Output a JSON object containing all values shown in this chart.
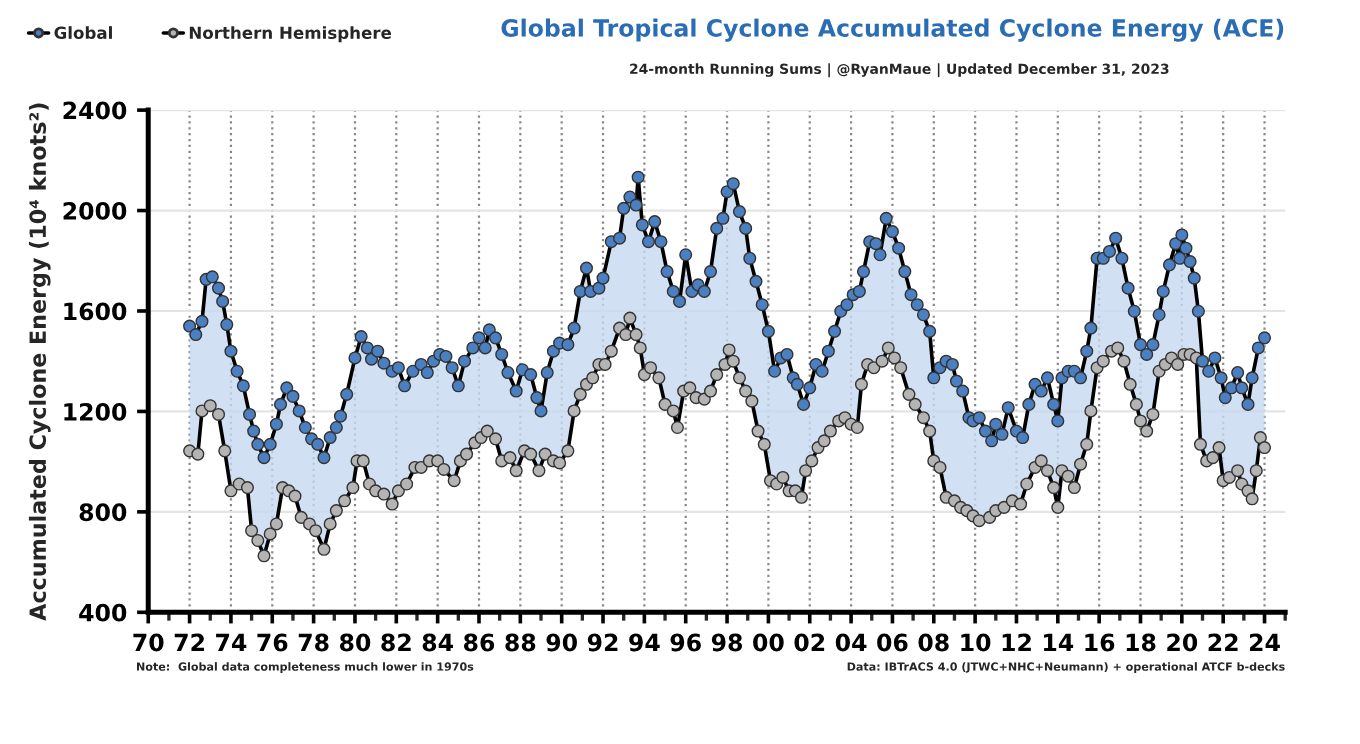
{
  "chart_data": {
    "type": "line",
    "title": "Global Tropical Cyclone Accumulated Cyclone Energy (ACE)",
    "subtitle": "24-month Running Sums | @RyanMaue | Updated December 31, 2023",
    "ylabel": "Accumulated Cyclone Energy (10⁴ knots²)",
    "annotations": [
      "Note:  Global data completeness much lower in 1970s",
      "Data: IBTrACS 4.0 (JTWC+NHC+Neumann) + operational ATCF b-decks"
    ],
    "xlim": [
      1970,
      2025
    ],
    "ylim": [
      400,
      2400
    ],
    "xticks": [
      {
        "value": 1970,
        "label": "70"
      },
      {
        "value": 1971,
        "label": null
      },
      {
        "value": 1972,
        "label": "72"
      },
      {
        "value": 1973,
        "label": null
      },
      {
        "value": 1974,
        "label": "74"
      },
      {
        "value": 1975,
        "label": null
      },
      {
        "value": 1976,
        "label": "76"
      },
      {
        "value": 1977,
        "label": null
      },
      {
        "value": 1978,
        "label": "78"
      },
      {
        "value": 1979,
        "label": null
      },
      {
        "value": 1980,
        "label": "80"
      },
      {
        "value": 1981,
        "label": null
      },
      {
        "value": 1982,
        "label": "82"
      },
      {
        "value": 1983,
        "label": null
      },
      {
        "value": 1984,
        "label": "84"
      },
      {
        "value": 1985,
        "label": null
      },
      {
        "value": 1986,
        "label": "86"
      },
      {
        "value": 1987,
        "label": null
      },
      {
        "value": 1988,
        "label": "88"
      },
      {
        "value": 1989,
        "label": null
      },
      {
        "value": 1990,
        "label": "90"
      },
      {
        "value": 1991,
        "label": null
      },
      {
        "value": 1992,
        "label": "92"
      },
      {
        "value": 1993,
        "label": null
      },
      {
        "value": 1994,
        "label": "94"
      },
      {
        "value": 1995,
        "label": null
      },
      {
        "value": 1996,
        "label": "96"
      },
      {
        "value": 1997,
        "label": null
      },
      {
        "value": 1998,
        "label": "98"
      },
      {
        "value": 1999,
        "label": null
      },
      {
        "value": 2000,
        "label": "00"
      },
      {
        "value": 2001,
        "label": null
      },
      {
        "value": 2002,
        "label": "02"
      },
      {
        "value": 2003,
        "label": null
      },
      {
        "value": 2004,
        "label": "04"
      },
      {
        "value": 2005,
        "label": null
      },
      {
        "value": 2006,
        "label": "06"
      },
      {
        "value": 2007,
        "label": null
      },
      {
        "value": 2008,
        "label": "08"
      },
      {
        "value": 2009,
        "label": null
      },
      {
        "value": 2010,
        "label": "10"
      },
      {
        "value": 2011,
        "label": null
      },
      {
        "value": 2012,
        "label": "12"
      },
      {
        "value": 2013,
        "label": null
      },
      {
        "value": 2014,
        "label": "14"
      },
      {
        "value": 2015,
        "label": null
      },
      {
        "value": 2016,
        "label": "16"
      },
      {
        "value": 2017,
        "label": null
      },
      {
        "value": 2018,
        "label": "18"
      },
      {
        "value": 2019,
        "label": null
      },
      {
        "value": 2020,
        "label": "20"
      },
      {
        "value": 2021,
        "label": null
      },
      {
        "value": 2022,
        "label": "22"
      },
      {
        "value": 2023,
        "label": null
      },
      {
        "value": 2024,
        "label": "24"
      },
      {
        "value": 2025,
        "label": null
      }
    ],
    "yticks": [
      400,
      800,
      1200,
      1600,
      2000,
      2400
    ],
    "grid": true,
    "legend": "top left",
    "marker": "circle",
    "line_style": "solid",
    "series": [
      {
        "name": "Global",
        "color": "#4a7fc1",
        "type": "area",
        "x": [
          1972.0,
          1972.3,
          1972.6,
          1972.8,
          1973.1,
          1973.4,
          1973.6,
          1973.8,
          1974.0,
          1974.3,
          1974.6,
          1974.9,
          1975.1,
          1975.3,
          1975.6,
          1975.9,
          1976.2,
          1976.4,
          1976.7,
          1977.0,
          1977.3,
          1977.6,
          1977.9,
          1978.2,
          1978.5,
          1978.8,
          1979.1,
          1979.3,
          1979.6,
          1980.0,
          1980.3,
          1980.6,
          1980.8,
          1981.1,
          1981.4,
          1981.8,
          1982.1,
          1982.4,
          1982.8,
          1983.2,
          1983.5,
          1983.8,
          1984.1,
          1984.4,
          1984.7,
          1985.0,
          1985.3,
          1985.7,
          1986.0,
          1986.3,
          1986.5,
          1986.8,
          1987.1,
          1987.4,
          1987.8,
          1988.1,
          1988.5,
          1988.8,
          1989.0,
          1989.3,
          1989.6,
          1989.9,
          1990.3,
          1990.6,
          1990.9,
          1991.2,
          1991.4,
          1991.8,
          1992.0,
          1992.4,
          1992.8,
          1993.0,
          1993.3,
          1993.6,
          1993.7,
          1993.9,
          1994.2,
          1994.5,
          1994.8,
          1995.1,
          1995.4,
          1995.7,
          1996.0,
          1996.3,
          1996.6,
          1996.9,
          1997.2,
          1997.5,
          1997.8,
          1998.0,
          1998.3,
          1998.6,
          1998.9,
          1999.1,
          1999.4,
          1999.7,
          2000.0,
          2000.3,
          2000.6,
          2000.9,
          2001.2,
          2001.4,
          2001.7,
          2002.0,
          2002.3,
          2002.6,
          2002.9,
          2003.2,
          2003.5,
          2003.8,
          2004.1,
          2004.4,
          2004.6,
          2004.9,
          2005.2,
          2005.4,
          2005.7,
          2006.0,
          2006.3,
          2006.6,
          2006.9,
          2007.2,
          2007.5,
          2007.8,
          2008.0,
          2008.3,
          2008.6,
          2008.9,
          2009.1,
          2009.4,
          2009.7,
          2009.9,
          2010.2,
          2010.5,
          2010.8,
          2011.0,
          2011.3,
          2011.6,
          2012.0,
          2012.3,
          2012.6,
          2012.9,
          2013.2,
          2013.5,
          2013.8,
          2014.0,
          2014.2,
          2014.5,
          2014.8,
          2015.1,
          2015.4,
          2015.6,
          2015.9,
          2016.2,
          2016.5,
          2016.8,
          2017.1,
          2017.4,
          2017.7,
          2018.0,
          2018.3,
          2018.6,
          2018.9,
          2019.1,
          2019.4,
          2019.7,
          2019.9,
          2020.0,
          2020.2,
          2020.4,
          2020.6,
          2020.8,
          2021.0,
          2021.3,
          2021.6,
          2021.9,
          2022.1,
          2022.4,
          2022.7,
          2022.9,
          2023.2,
          2023.4,
          2023.7,
          2024.0
        ],
        "values": [
          1540,
          1506,
          1559,
          1726,
          1736,
          1691,
          1638,
          1546,
          1440,
          1360,
          1302,
          1188,
          1122,
          1069,
          1016,
          1069,
          1149,
          1228,
          1294,
          1260,
          1202,
          1136,
          1091,
          1069,
          1016,
          1096,
          1136,
          1181,
          1268,
          1413,
          1498,
          1453,
          1408,
          1440,
          1392,
          1360,
          1374,
          1302,
          1360,
          1387,
          1355,
          1400,
          1427,
          1419,
          1374,
          1302,
          1400,
          1453,
          1493,
          1453,
          1525,
          1493,
          1427,
          1355,
          1281,
          1366,
          1347,
          1255,
          1202,
          1355,
          1440,
          1472,
          1466,
          1532,
          1678,
          1771,
          1678,
          1691,
          1731,
          1876,
          1890,
          2009,
          2054,
          2022,
          2133,
          1943,
          1876,
          1956,
          1876,
          1757,
          1678,
          1638,
          1824,
          1678,
          1704,
          1678,
          1757,
          1929,
          1969,
          2075,
          2107,
          1996,
          1929,
          1810,
          1718,
          1625,
          1519,
          1360,
          1413,
          1427,
          1334,
          1308,
          1228,
          1294,
          1387,
          1360,
          1440,
          1519,
          1599,
          1625,
          1665,
          1678,
          1757,
          1876,
          1868,
          1824,
          1969,
          1916,
          1850,
          1757,
          1665,
          1625,
          1585,
          1519,
          1334,
          1374,
          1400,
          1387,
          1321,
          1281,
          1175,
          1162,
          1175,
          1122,
          1083,
          1149,
          1109,
          1215,
          1122,
          1096,
          1228,
          1308,
          1281,
          1334,
          1228,
          1162,
          1334,
          1360,
          1360,
          1334,
          1440,
          1532,
          1810,
          1810,
          1837,
          1890,
          1810,
          1691,
          1599,
          1466,
          1427,
          1466,
          1585,
          1678,
          1784,
          1868,
          1810,
          1903,
          1850,
          1797,
          1731,
          1599,
          1400,
          1360,
          1413,
          1334,
          1255,
          1294,
          1355,
          1294,
          1228,
          1334,
          1453,
          1493
        ]
      },
      {
        "name": "Northern Hemisphere",
        "color": "#b4b4b4",
        "x": [
          1972.0,
          1972.4,
          1972.6,
          1973.0,
          1973.4,
          1973.7,
          1974.0,
          1974.4,
          1974.8,
          1975.0,
          1975.3,
          1975.6,
          1975.9,
          1976.2,
          1976.5,
          1976.8,
          1977.1,
          1977.4,
          1977.8,
          1978.1,
          1978.5,
          1978.8,
          1979.1,
          1979.5,
          1979.9,
          1980.1,
          1980.4,
          1980.7,
          1981.0,
          1981.4,
          1981.8,
          1982.1,
          1982.5,
          1982.9,
          1983.2,
          1983.6,
          1984.0,
          1984.3,
          1984.8,
          1985.1,
          1985.4,
          1985.8,
          1986.1,
          1986.4,
          1986.8,
          1987.1,
          1987.5,
          1987.8,
          1988.2,
          1988.5,
          1988.9,
          1989.2,
          1989.6,
          1989.9,
          1990.3,
          1990.6,
          1990.9,
          1991.2,
          1991.5,
          1991.8,
          1992.1,
          1992.4,
          1992.8,
          1993.1,
          1993.3,
          1993.6,
          1993.8,
          1994.0,
          1994.3,
          1994.7,
          1995.0,
          1995.4,
          1995.6,
          1995.9,
          1996.2,
          1996.5,
          1996.9,
          1997.2,
          1997.5,
          1997.9,
          1998.1,
          1998.3,
          1998.6,
          1998.9,
          1999.2,
          1999.5,
          1999.8,
          2000.1,
          2000.4,
          2000.7,
          2001.0,
          2001.3,
          2001.6,
          2001.8,
          2002.1,
          2002.4,
          2002.7,
          2003.0,
          2003.4,
          2003.7,
          2004.0,
          2004.3,
          2004.5,
          2004.8,
          2005.1,
          2005.5,
          2005.8,
          2006.1,
          2006.4,
          2006.8,
          2007.1,
          2007.5,
          2007.8,
          2008.0,
          2008.3,
          2008.6,
          2009.0,
          2009.3,
          2009.6,
          2009.9,
          2010.2,
          2010.7,
          2011.0,
          2011.4,
          2011.8,
          2012.2,
          2012.5,
          2012.9,
          2013.2,
          2013.5,
          2013.8,
          2014.0,
          2014.2,
          2014.5,
          2014.8,
          2015.1,
          2015.4,
          2015.6,
          2015.9,
          2016.2,
          2016.6,
          2016.9,
          2017.2,
          2017.5,
          2017.8,
          2018.0,
          2018.3,
          2018.6,
          2018.9,
          2019.2,
          2019.5,
          2019.8,
          2020.1,
          2020.4,
          2020.7,
          2020.9,
          2021.2,
          2021.5,
          2021.8,
          2022.0,
          2022.3,
          2022.7,
          2022.9,
          2023.2,
          2023.4,
          2023.6,
          2023.8,
          2024.0
        ],
        "values": [
          1043,
          1030,
          1202,
          1223,
          1188,
          1043,
          884,
          911,
          897,
          725,
          686,
          625,
          712,
          752,
          897,
          884,
          863,
          778,
          752,
          725,
          651,
          752,
          805,
          844,
          897,
          1003,
          1003,
          911,
          884,
          871,
          831,
          884,
          911,
          977,
          977,
          1003,
          1003,
          969,
          924,
          1003,
          1030,
          1075,
          1096,
          1122,
          1091,
          1003,
          1016,
          964,
          1043,
          1030,
          964,
          1030,
          1003,
          995,
          1043,
          1202,
          1268,
          1308,
          1334,
          1387,
          1387,
          1440,
          1532,
          1506,
          1572,
          1506,
          1453,
          1347,
          1374,
          1334,
          1228,
          1202,
          1136,
          1281,
          1294,
          1255,
          1249,
          1281,
          1347,
          1387,
          1445,
          1400,
          1334,
          1281,
          1241,
          1122,
          1069,
          924,
          911,
          937,
          884,
          884,
          858,
          964,
          1003,
          1056,
          1083,
          1122,
          1162,
          1175,
          1149,
          1136,
          1308,
          1387,
          1374,
          1400,
          1453,
          1413,
          1374,
          1268,
          1228,
          1175,
          1122,
          1003,
          977,
          858,
          844,
          818,
          805,
          784,
          765,
          778,
          805,
          818,
          844,
          831,
          911,
          977,
          1003,
          964,
          897,
          818,
          964,
          942,
          897,
          990,
          1069,
          1202,
          1374,
          1400,
          1440,
          1453,
          1400,
          1308,
          1228,
          1162,
          1122,
          1188,
          1360,
          1387,
          1413,
          1387,
          1427,
          1427,
          1413,
          1069,
          1003,
          1016,
          1056,
          924,
          937,
          964,
          911,
          884,
          852,
          964,
          1096,
          1056
        ]
      }
    ]
  }
}
